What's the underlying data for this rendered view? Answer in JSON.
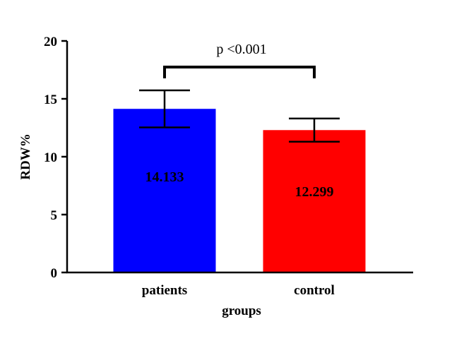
{
  "chart_data": {
    "type": "bar",
    "categories": [
      "patients",
      "control"
    ],
    "values": [
      14.133,
      12.299
    ],
    "error": [
      1.6,
      1.0
    ],
    "value_labels": [
      "14.133",
      "12.299"
    ],
    "colors": [
      "#0000ff",
      "#ff0000"
    ],
    "xlabel": "groups",
    "ylabel": "RDW%",
    "ylim": [
      0,
      20
    ],
    "yticks": [
      0,
      5,
      10,
      15,
      20
    ],
    "ytick_labels": [
      "0",
      "5",
      "10",
      "15",
      "20"
    ],
    "grid": false,
    "annotation": "p <0.001"
  }
}
